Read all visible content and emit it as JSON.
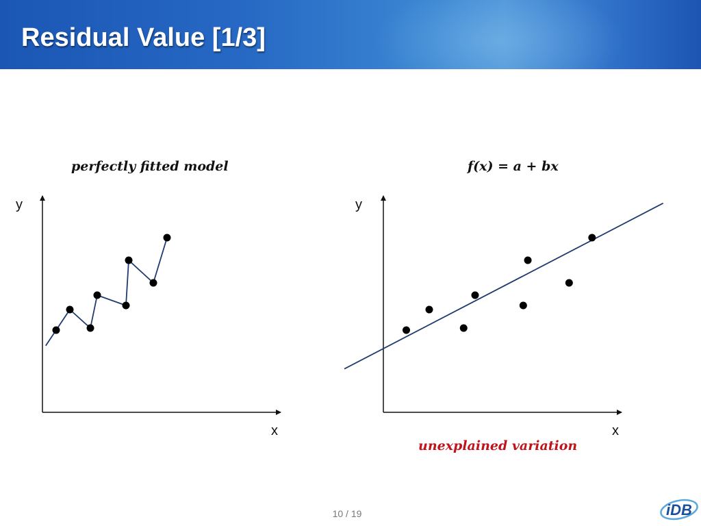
{
  "slide": {
    "title": "Residual Value [1/3]",
    "page_current": "10",
    "page_separator": "/",
    "page_total": "19"
  },
  "left_panel": {
    "caption": "perfectly fitted model",
    "y_label": "y",
    "x_label": "x"
  },
  "right_panel": {
    "caption": "f(x) = a + bx",
    "y_label": "y",
    "x_label": "x",
    "note": "unexplained variation"
  },
  "logo": {
    "text": "iDB"
  },
  "colors": {
    "header_blue": "#2669c4",
    "line_navy": "#1f3a6e",
    "note_red": "#c0141c"
  },
  "chart_data": [
    {
      "type": "line",
      "title": "perfectly fitted model",
      "xlabel": "x",
      "ylabel": "y",
      "x": [
        1.0,
        2.0,
        3.5,
        4.0,
        6.1,
        6.3,
        8.1,
        9.1
      ],
      "y": [
        4.0,
        5.0,
        4.1,
        5.7,
        5.2,
        7.4,
        6.3,
        8.5
      ],
      "points_shown": [
        2,
        3,
        4,
        5,
        6,
        7,
        8,
        9
      ],
      "xlim": [
        0,
        10
      ],
      "ylim": [
        0,
        10
      ],
      "grid": false
    },
    {
      "type": "scatter",
      "title": "f(x) = a + bx",
      "xlabel": "x",
      "ylabel": "y",
      "x": [
        1.0,
        2.0,
        3.5,
        4.0,
        6.1,
        6.3,
        8.1,
        9.1
      ],
      "y": [
        4.0,
        5.0,
        4.1,
        5.7,
        5.2,
        7.4,
        6.3,
        8.5
      ],
      "fit_line": {
        "a": 3.1,
        "b": 0.58,
        "x_range": [
          -1.7,
          12.2
        ]
      },
      "xlim": [
        0,
        10
      ],
      "ylim": [
        0,
        10
      ],
      "grid": false
    }
  ]
}
